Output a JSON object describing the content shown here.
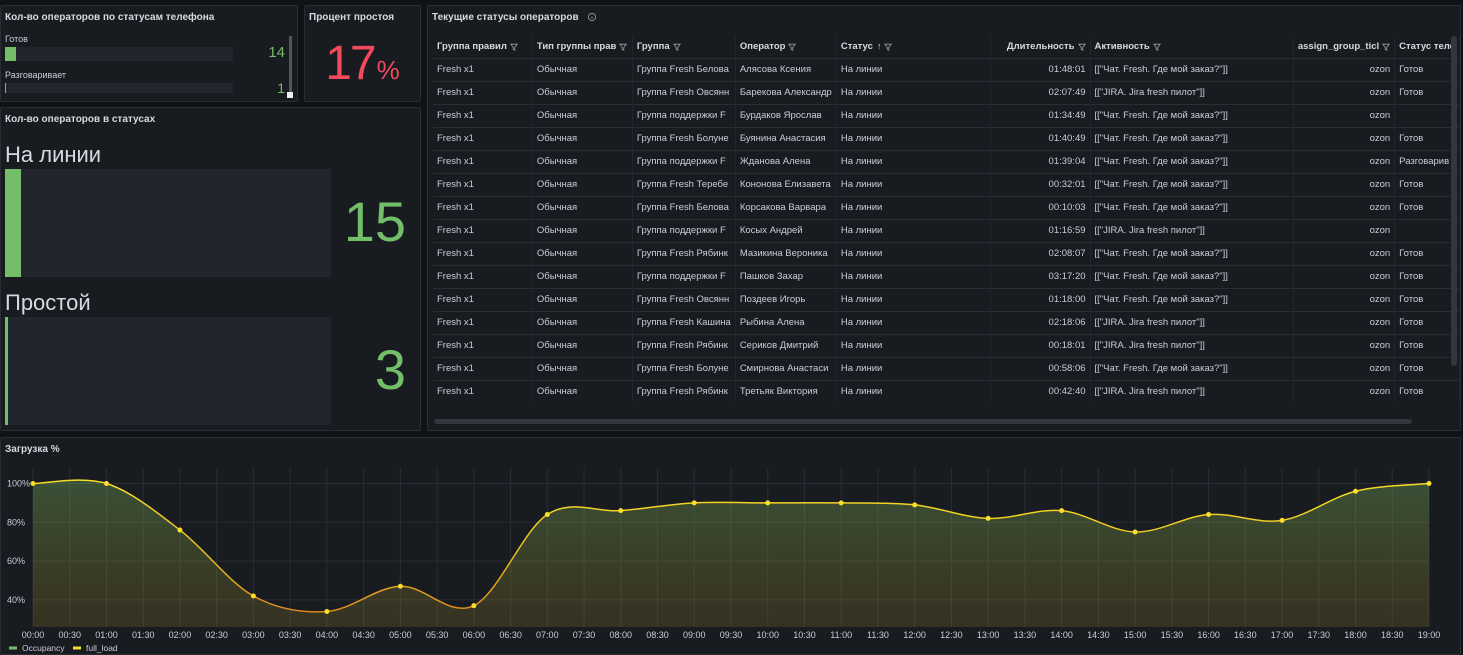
{
  "phone_panel": {
    "title": "Кол-во операторов по статусам телефона",
    "gauge_max": 300,
    "items": [
      {
        "label": "Готов",
        "value": 14
      },
      {
        "label": "Разговаривает",
        "value": 1
      }
    ]
  },
  "idle_panel": {
    "title": "Процент простоя",
    "value": 17,
    "unit": "%"
  },
  "status_panel": {
    "title": "Кол-во операторов в статусах",
    "gauge_max": 300,
    "items": [
      {
        "label": "На линии",
        "value": 15
      },
      {
        "label": "Простой",
        "value": 3
      }
    ]
  },
  "table": {
    "title": "Текущие статусы операторов",
    "columns": [
      "Группа правил",
      "Тип группы прав",
      "Группа",
      "Оператор",
      "Статус",
      "Длительность",
      "Активность",
      "assign_group_ticl",
      "Статус теле"
    ],
    "rows": [
      [
        "Fresh x1",
        "Обычная",
        "Группа Fresh Белова",
        "Алясова Ксения",
        "На линии",
        "01:48:01",
        "[[\"Чат. Fresh. Где мой заказ?\"]]",
        "ozon",
        "Готов"
      ],
      [
        "Fresh x1",
        "Обычная",
        "Группа Fresh Овсянн",
        "Барекова Александр",
        "На линии",
        "02:07:49",
        "[[\"JIRA. Jira fresh пилот\"]]",
        "ozon",
        "Готов"
      ],
      [
        "Fresh x1",
        "Обычная",
        "Группа поддержки F",
        "Бурдаков Ярослав",
        "На линии",
        "01:34:49",
        "[[\"Чат. Fresh. Где мой заказ?\"]]",
        "ozon",
        null
      ],
      [
        "Fresh x1",
        "Обычная",
        "Группа Fresh Болуне",
        "Буянина Анастасия",
        "На линии",
        "01:40:49",
        "[[\"Чат. Fresh. Где мой заказ?\"]]",
        "ozon",
        "Готов"
      ],
      [
        "Fresh x1",
        "Обычная",
        "Группа поддержки F",
        "Жданова Алена",
        "На линии",
        "01:39:04",
        "[[\"Чат. Fresh. Где мой заказ?\"]]",
        "ozon",
        "Разговарив"
      ],
      [
        "Fresh x1",
        "Обычная",
        "Группа Fresh Теребе",
        "Кононова Елизавета",
        "На линии",
        "00:32:01",
        "[[\"Чат. Fresh. Где мой заказ?\"]]",
        "ozon",
        "Готов"
      ],
      [
        "Fresh x1",
        "Обычная",
        "Группа Fresh Белова",
        "Корсакова Варвара",
        "На линии",
        "00:10:03",
        "[[\"Чат. Fresh. Где мой заказ?\"]]",
        "ozon",
        "Готов"
      ],
      [
        "Fresh x1",
        "Обычная",
        "Группа поддержки F",
        "Косых Андрей",
        "На линии",
        "01:16:59",
        "[[\"JIRA. Jira fresh пилот\"]]",
        "ozon",
        null
      ],
      [
        "Fresh x1",
        "Обычная",
        "Группа Fresh Рябинк",
        "Мазикина Вероника",
        "На линии",
        "02:08:07",
        "[[\"Чат. Fresh. Где мой заказ?\"]]",
        "ozon",
        "Готов"
      ],
      [
        "Fresh x1",
        "Обычная",
        "Группа поддержки F",
        "Пашков Захар",
        "На линии",
        "03:17:20",
        "[[\"Чат. Fresh. Где мой заказ?\"]]",
        "ozon",
        "Готов"
      ],
      [
        "Fresh x1",
        "Обычная",
        "Группа Fresh Овсянн",
        "Поздеев Игорь",
        "На линии",
        "01:18:00",
        "[[\"Чат. Fresh. Где мой заказ?\"]]",
        "ozon",
        "Готов"
      ],
      [
        "Fresh x1",
        "Обычная",
        "Группа Fresh Кашина",
        "Рыбина Алена",
        "На линии",
        "02:18:06",
        "[[\"JIRA. Jira fresh пилот\"]]",
        "ozon",
        "Готов"
      ],
      [
        "Fresh x1",
        "Обычная",
        "Группа Fresh Рябинк",
        "Сериков Дмитрий",
        "На линии",
        "00:18:01",
        "[[\"JIRA. Jira fresh пилот\"]]",
        "ozon",
        "Готов"
      ],
      [
        "Fresh x1",
        "Обычная",
        "Группа Fresh Болуне",
        "Смирнова Анастаси",
        "На линии",
        "00:58:06",
        "[[\"Чат. Fresh. Где мой заказ?\"]]",
        "ozon",
        "Готов"
      ],
      [
        "Fresh x1",
        "Обычная",
        "Группа Fresh Рябинк",
        "Третьяк Виктория",
        "На линии",
        "00:42:40",
        "[[\"JIRA. Jira fresh пилот\"]]",
        "ozon",
        "Готов"
      ]
    ]
  },
  "chart_data": {
    "type": "line",
    "title": "Загрузка %",
    "x": [
      0,
      1,
      2,
      3,
      4,
      5,
      6,
      7,
      8,
      9,
      10,
      11,
      12,
      13,
      14,
      15,
      16,
      17,
      18,
      19
    ],
    "xlim": [
      0,
      19
    ],
    "xticks": [
      {
        "value": 0,
        "label": "00:00"
      },
      {
        "value": 0.5,
        "label": "00:30"
      },
      {
        "value": 1,
        "label": "01:00"
      },
      {
        "value": 1.5,
        "label": "01:30"
      },
      {
        "value": 2,
        "label": "02:00"
      },
      {
        "value": 2.5,
        "label": "02:30"
      },
      {
        "value": 3,
        "label": "03:00"
      },
      {
        "value": 3.5,
        "label": "03:30"
      },
      {
        "value": 4,
        "label": "04:00"
      },
      {
        "value": 4.5,
        "label": "04:30"
      },
      {
        "value": 5,
        "label": "05:00"
      },
      {
        "value": 5.5,
        "label": "05:30"
      },
      {
        "value": 6,
        "label": "06:00"
      },
      {
        "value": 6.5,
        "label": "06:30"
      },
      {
        "value": 7,
        "label": "07:00"
      },
      {
        "value": 7.5,
        "label": "07:30"
      },
      {
        "value": 8,
        "label": "08:00"
      },
      {
        "value": 8.5,
        "label": "08:30"
      },
      {
        "value": 9,
        "label": "09:00"
      },
      {
        "value": 9.5,
        "label": "09:30"
      },
      {
        "value": 10,
        "label": "10:00"
      },
      {
        "value": 10.5,
        "label": "10:30"
      },
      {
        "value": 11,
        "label": "11:00"
      },
      {
        "value": 11.5,
        "label": "11:30"
      },
      {
        "value": 12,
        "label": "12:00"
      },
      {
        "value": 12.5,
        "label": "12:30"
      },
      {
        "value": 13,
        "label": "13:00"
      },
      {
        "value": 13.5,
        "label": "13:30"
      },
      {
        "value": 14,
        "label": "14:00"
      },
      {
        "value": 14.5,
        "label": "14:30"
      },
      {
        "value": 15,
        "label": "15:00"
      },
      {
        "value": 15.5,
        "label": "15:30"
      },
      {
        "value": 16,
        "label": "16:00"
      },
      {
        "value": 16.5,
        "label": "16:30"
      },
      {
        "value": 17,
        "label": "17:00"
      },
      {
        "value": 17.5,
        "label": "17:30"
      },
      {
        "value": 18,
        "label": "18:00"
      },
      {
        "value": 18.5,
        "label": "18:30"
      },
      {
        "value": 19,
        "label": "19:00"
      }
    ],
    "ylim": [
      26,
      108
    ],
    "yticks": [
      {
        "value": 40,
        "label": "40%"
      },
      {
        "value": 60,
        "label": "60%"
      },
      {
        "value": 80,
        "label": "80%"
      },
      {
        "value": 100,
        "label": "100%"
      }
    ],
    "grid": true,
    "series": [
      {
        "name": "Occupancy",
        "color": "#73bf69",
        "values": [
          null,
          null,
          null,
          null,
          null,
          null,
          null,
          null,
          null,
          null,
          null,
          null,
          null,
          null,
          null,
          null,
          null,
          null,
          null,
          null
        ]
      },
      {
        "name": "full_load",
        "color": "#fade2a",
        "values": [
          100,
          100,
          76,
          42,
          34,
          47,
          37,
          84,
          86,
          90,
          90,
          90,
          89,
          82,
          86,
          75,
          84,
          81,
          96,
          100
        ]
      }
    ]
  }
}
